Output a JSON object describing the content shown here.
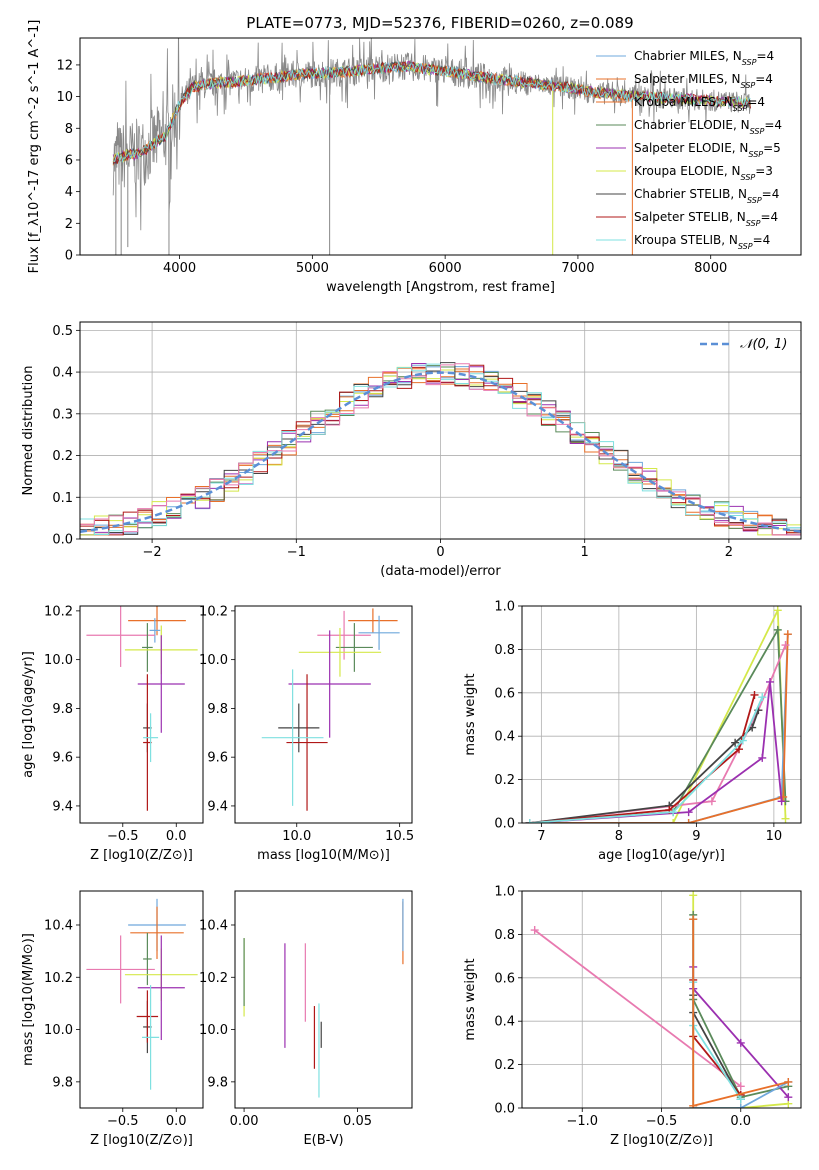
{
  "figure_title": "PLATE=0773, MJD=52376, FIBERID=0260, z=0.089",
  "colors": {
    "chabrier_miles": "#6fa8dc",
    "salpeter_miles": "#e8702a",
    "kroupa_miles": "#e8702a",
    "chabrier_elodie": "#5a8a5a",
    "salpeter_elodie": "#9b30b0",
    "kroupa_elodie": "#d4e84a",
    "chabrier_stelib": "#444444",
    "salpeter_stelib": "#b01818",
    "kroupa_stelib": "#7fe0e0",
    "extra_pink": "#e87ab0",
    "data_gray": "#888888",
    "normal_curve": "#5b8fd6",
    "grid": "#b0b0b0"
  },
  "chart_data": [
    {
      "id": "spectrum",
      "type": "line",
      "title": "PLATE=0773, MJD=52376, FIBERID=0260, z=0.089",
      "xlabel": "wavelength [Angstrom, rest frame]",
      "ylabel": "Flux [f_λ10^-17 erg cm^-2 s^-1 A^-1]",
      "xlim": [
        3250,
        8680
      ],
      "ylim": [
        0,
        13.7
      ],
      "xticks": [
        4000,
        5000,
        6000,
        7000,
        8000
      ],
      "yticks": [
        0,
        2,
        4,
        6,
        8,
        10,
        12
      ],
      "grid": false,
      "legend_position": "right",
      "series": [
        {
          "name": "Chabrier MILES, N_SSP=4",
          "color_key": "chabrier_miles"
        },
        {
          "name": "Salpeter MILES, N_SSP=4",
          "color_key": "salpeter_miles"
        },
        {
          "name": "Kroupa MILES, N_SSP=4",
          "color_key": "kroupa_miles"
        },
        {
          "name": "Chabrier ELODIE, N_SSP=4",
          "color_key": "chabrier_elodie"
        },
        {
          "name": "Salpeter ELODIE, N_SSP=5",
          "color_key": "salpeter_elodie"
        },
        {
          "name": "Kroupa ELODIE, N_SSP=3",
          "color_key": "kroupa_elodie"
        },
        {
          "name": "Chabrier STELIB, N_SSP=4",
          "color_key": "chabrier_stelib"
        },
        {
          "name": "Salpeter STELIB, N_SSP=4",
          "color_key": "salpeter_stelib"
        },
        {
          "name": "Kroupa STELIB, N_SSP=4",
          "color_key": "kroupa_stelib"
        }
      ],
      "continuum": {
        "x": [
          3500,
          3600,
          3700,
          3800,
          3900,
          4000,
          4100,
          4300,
          4500,
          4700,
          4900,
          5100,
          5300,
          5500,
          5700,
          5900,
          6100,
          6300,
          6500,
          6700,
          6900,
          7100,
          7300,
          7500,
          7700,
          7900,
          8100,
          8300
        ],
        "y": [
          6.0,
          6.3,
          6.4,
          7.0,
          7.6,
          9.6,
          10.6,
          10.9,
          11.0,
          11.2,
          11.4,
          11.5,
          11.6,
          11.8,
          11.9,
          11.7,
          11.5,
          11.2,
          11.0,
          10.8,
          10.6,
          10.3,
          10.1,
          10.0,
          9.9,
          9.8,
          9.7,
          9.6
        ]
      }
    },
    {
      "id": "residuals",
      "type": "histogram",
      "xlabel": "(data-model)/error",
      "ylabel": "Normed distribution",
      "xlim": [
        -2.5,
        2.5
      ],
      "ylim": [
        0,
        0.52
      ],
      "xticks": [
        -2,
        -1,
        0,
        1,
        2
      ],
      "yticks": [
        0.0,
        0.1,
        0.2,
        0.3,
        0.4,
        0.5
      ],
      "grid": true,
      "legend": [
        "𝒩(0, 1)"
      ],
      "legend_position": "top-right",
      "normal_mean": 0,
      "normal_sd": 1
    },
    {
      "id": "age_vs_Z",
      "type": "scatter",
      "xlabel": "Z [log10(Z/Z⊙)]",
      "ylabel": "age [log10(age/yr)]",
      "xlim": [
        -0.9,
        0.25
      ],
      "ylim": [
        9.33,
        10.22
      ],
      "xticks": [
        -0.5,
        0.0
      ],
      "yticks": [
        9.4,
        9.6,
        9.8,
        10.0,
        10.2
      ],
      "points": [
        {
          "x": -0.18,
          "xerr": 0.27,
          "y": 10.16,
          "yerr": 0.06,
          "color_key": "salpeter_miles"
        },
        {
          "x": -0.2,
          "xerr": 0.05,
          "y": 10.12,
          "yerr": 0.05,
          "color_key": "chabrier_miles"
        },
        {
          "x": -0.52,
          "xerr": 0.32,
          "y": 10.1,
          "yerr": 0.13,
          "color_key": "extra_pink"
        },
        {
          "x": -0.27,
          "xerr": 0.05,
          "y": 10.05,
          "yerr": 0.1,
          "color_key": "chabrier_elodie"
        },
        {
          "x": -0.14,
          "xerr": 0.34,
          "y": 10.04,
          "yerr": 0.1,
          "color_key": "kroupa_elodie"
        },
        {
          "x": -0.14,
          "xerr": 0.22,
          "y": 9.9,
          "yerr": 0.2,
          "color_key": "salpeter_elodie"
        },
        {
          "x": -0.27,
          "xerr": 0.04,
          "y": 9.72,
          "yerr": 0.1,
          "color_key": "chabrier_stelib"
        },
        {
          "x": -0.27,
          "xerr": 0.04,
          "y": 9.66,
          "yerr": 0.28,
          "color_key": "salpeter_stelib"
        },
        {
          "x": -0.24,
          "xerr": 0.07,
          "y": 9.68,
          "yerr": 0.1,
          "color_key": "kroupa_stelib"
        }
      ]
    },
    {
      "id": "age_vs_mass",
      "type": "scatter",
      "xlabel": "mass [log10(M/M⊙)]",
      "ylabel": "",
      "xlim": [
        9.7,
        10.56
      ],
      "ylim": [
        9.33,
        10.22
      ],
      "xticks": [
        10.0,
        10.5
      ],
      "yticks": [
        9.4,
        9.6,
        9.8,
        10.0,
        10.2
      ],
      "points": [
        {
          "x": 10.37,
          "xerr": 0.12,
          "y": 10.16,
          "yerr": 0.05,
          "color_key": "salpeter_miles"
        },
        {
          "x": 10.4,
          "xerr": 0.1,
          "y": 10.11,
          "yerr": 0.07,
          "color_key": "chabrier_miles"
        },
        {
          "x": 10.23,
          "xerr": 0.13,
          "y": 10.1,
          "yerr": 0.1,
          "color_key": "extra_pink"
        },
        {
          "x": 10.28,
          "xerr": 0.09,
          "y": 10.05,
          "yerr": 0.1,
          "color_key": "chabrier_elodie"
        },
        {
          "x": 10.21,
          "xerr": 0.2,
          "y": 10.03,
          "yerr": 0.1,
          "color_key": "kroupa_elodie"
        },
        {
          "x": 10.16,
          "xerr": 0.2,
          "y": 9.9,
          "yerr": 0.22,
          "color_key": "salpeter_elodie"
        },
        {
          "x": 10.01,
          "xerr": 0.1,
          "y": 9.72,
          "yerr": 0.1,
          "color_key": "chabrier_stelib"
        },
        {
          "x": 10.05,
          "xerr": 0.1,
          "y": 9.66,
          "yerr": 0.28,
          "color_key": "salpeter_stelib"
        },
        {
          "x": 9.98,
          "xerr": 0.15,
          "y": 9.68,
          "yerr": 0.28,
          "color_key": "kroupa_stelib"
        }
      ]
    },
    {
      "id": "weight_vs_age",
      "type": "line",
      "xlabel": "age [log10(age/yr)]",
      "ylabel": "mass weight",
      "xlim": [
        6.75,
        10.35
      ],
      "ylim": [
        0,
        1.0
      ],
      "xticks": [
        7,
        8,
        9,
        10
      ],
      "yticks": [
        0.0,
        0.2,
        0.4,
        0.6,
        0.8,
        1.0
      ],
      "grid": true,
      "series": [
        {
          "color_key": "kroupa_elodie",
          "x": [
            6.85,
            8.7,
            10.05,
            10.15
          ],
          "y": [
            0.0,
            0.0,
            0.98,
            0.02
          ]
        },
        {
          "color_key": "chabrier_elodie",
          "x": [
            6.85,
            8.7,
            10.05,
            10.15
          ],
          "y": [
            0.0,
            0.05,
            0.89,
            0.1
          ]
        },
        {
          "color_key": "chabrier_miles",
          "x": [
            6.85,
            8.9,
            10.1,
            10.18
          ],
          "y": [
            0.0,
            0.0,
            0.12,
            0.87
          ]
        },
        {
          "color_key": "salpeter_miles",
          "x": [
            6.85,
            8.9,
            10.12,
            10.18
          ],
          "y": [
            0.0,
            0.0,
            0.12,
            0.87
          ]
        },
        {
          "color_key": "extra_pink",
          "x": [
            6.85,
            9.2,
            9.8,
            10.15
          ],
          "y": [
            0.0,
            0.1,
            0.52,
            0.82
          ]
        },
        {
          "color_key": "salpeter_elodie",
          "x": [
            6.85,
            8.9,
            9.85,
            9.95,
            10.1
          ],
          "y": [
            0.0,
            0.05,
            0.3,
            0.65,
            0.1
          ]
        },
        {
          "color_key": "chabrier_stelib",
          "x": [
            6.85,
            8.65,
            9.5,
            9.72,
            9.8
          ],
          "y": [
            0.0,
            0.08,
            0.37,
            0.44,
            0.52
          ]
        },
        {
          "color_key": "salpeter_stelib",
          "x": [
            6.85,
            8.65,
            9.55,
            9.75
          ],
          "y": [
            0.0,
            0.06,
            0.34,
            0.59
          ]
        },
        {
          "color_key": "kroupa_stelib",
          "x": [
            6.85,
            8.7,
            9.6,
            9.85
          ],
          "y": [
            0.0,
            0.05,
            0.38,
            0.58
          ]
        }
      ]
    },
    {
      "id": "mass_vs_Z",
      "type": "scatter",
      "xlabel": "Z [log10(Z/Z⊙)]",
      "ylabel": "mass [log10(M/M⊙)]",
      "xlim": [
        -0.9,
        0.25
      ],
      "ylim": [
        9.7,
        10.53
      ],
      "xticks": [
        -0.5,
        0.0
      ],
      "yticks": [
        9.8,
        10.0,
        10.2,
        10.4
      ],
      "points": [
        {
          "x": -0.18,
          "xerr": 0.27,
          "y": 10.4,
          "yerr": 0.1,
          "color_key": "chabrier_miles"
        },
        {
          "x": -0.18,
          "xerr": 0.25,
          "y": 10.37,
          "yerr": 0.1,
          "color_key": "salpeter_miles"
        },
        {
          "x": -0.52,
          "xerr": 0.32,
          "y": 10.23,
          "yerr": 0.13,
          "color_key": "extra_pink"
        },
        {
          "x": -0.27,
          "xerr": 0.04,
          "y": 10.27,
          "yerr": 0.1,
          "color_key": "chabrier_elodie"
        },
        {
          "x": -0.14,
          "xerr": 0.34,
          "y": 10.21,
          "yerr": 0.1,
          "color_key": "kroupa_elodie"
        },
        {
          "x": -0.14,
          "xerr": 0.22,
          "y": 10.16,
          "yerr": 0.2,
          "color_key": "salpeter_elodie"
        },
        {
          "x": -0.27,
          "xerr": 0.04,
          "y": 10.01,
          "yerr": 0.1,
          "color_key": "chabrier_stelib"
        },
        {
          "x": -0.27,
          "xerr": 0.1,
          "y": 10.05,
          "yerr": 0.1,
          "color_key": "salpeter_stelib"
        },
        {
          "x": -0.24,
          "xerr": 0.08,
          "y": 9.97,
          "yerr": 0.2,
          "color_key": "kroupa_stelib"
        }
      ]
    },
    {
      "id": "mass_vs_EBV",
      "type": "scatter",
      "xlabel": "E(B-V)",
      "ylabel": "",
      "xlim": [
        -0.004,
        0.074
      ],
      "ylim": [
        9.7,
        10.53
      ],
      "xticks": [
        0.0,
        0.05
      ],
      "yticks": [
        9.8,
        10.0,
        10.2,
        10.4
      ],
      "points": [
        {
          "x": 0.0,
          "xerr": 0,
          "y": 10.2,
          "yerr": 0.15,
          "color_key": "kroupa_elodie"
        },
        {
          "x": 0.0,
          "xerr": 0,
          "y": 10.22,
          "yerr": 0.13,
          "color_key": "chabrier_elodie"
        },
        {
          "x": 0.018,
          "xerr": 0,
          "y": 10.13,
          "yerr": 0.2,
          "color_key": "salpeter_elodie"
        },
        {
          "x": 0.027,
          "xerr": 0,
          "y": 10.18,
          "yerr": 0.15,
          "color_key": "extra_pink"
        },
        {
          "x": 0.031,
          "xerr": 0,
          "y": 9.97,
          "yerr": 0.12,
          "color_key": "salpeter_stelib"
        },
        {
          "x": 0.034,
          "xerr": 0,
          "y": 9.98,
          "yerr": 0.05,
          "color_key": "chabrier_stelib"
        },
        {
          "x": 0.033,
          "xerr": 0,
          "y": 9.92,
          "yerr": 0.18,
          "color_key": "kroupa_stelib"
        },
        {
          "x": 0.07,
          "xerr": 0,
          "y": 10.37,
          "yerr": 0.12,
          "color_key": "salpeter_miles"
        },
        {
          "x": 0.07,
          "xerr": 0,
          "y": 10.4,
          "yerr": 0.1,
          "color_key": "chabrier_miles"
        }
      ]
    },
    {
      "id": "weight_vs_Z",
      "type": "line",
      "xlabel": "Z [log10(Z/Z⊙)]",
      "ylabel": "mass weight",
      "xlim": [
        -1.38,
        0.38
      ],
      "ylim": [
        0,
        1.0
      ],
      "xticks": [
        -1.0,
        -0.5,
        0.0
      ],
      "yticks": [
        0.0,
        0.2,
        0.4,
        0.6,
        0.8,
        1.0
      ],
      "grid": true,
      "series": [
        {
          "color_key": "extra_pink",
          "x": [
            -1.3,
            0.0
          ],
          "y": [
            0.82,
            0.1
          ]
        },
        {
          "color_key": "kroupa_elodie",
          "x": [
            -0.3,
            -0.3,
            0.0,
            0.3
          ],
          "y": [
            0.98,
            0.0,
            0.0,
            0.02
          ]
        },
        {
          "color_key": "chabrier_elodie",
          "x": [
            -0.3,
            -0.3,
            0.0,
            0.3
          ],
          "y": [
            0.89,
            0.5,
            0.05,
            0.1
          ]
        },
        {
          "color_key": "salpeter_elodie",
          "x": [
            -0.3,
            -0.3,
            0.0,
            0.3
          ],
          "y": [
            0.65,
            0.55,
            0.3,
            0.05
          ]
        },
        {
          "color_key": "salpeter_stelib",
          "x": [
            -0.3,
            -0.3,
            0.0
          ],
          "y": [
            0.59,
            0.33,
            0.06
          ]
        },
        {
          "color_key": "chabrier_stelib",
          "x": [
            -0.3,
            -0.3,
            0.0
          ],
          "y": [
            0.52,
            0.44,
            0.04
          ]
        },
        {
          "color_key": "kroupa_stelib",
          "x": [
            -0.3,
            -0.3,
            0.0
          ],
          "y": [
            0.58,
            0.38,
            0.04
          ]
        },
        {
          "color_key": "chabrier_miles",
          "x": [
            -0.3,
            -0.3,
            0.0,
            0.3
          ],
          "y": [
            0.87,
            0.0,
            0.0,
            0.12
          ]
        },
        {
          "color_key": "salpeter_miles",
          "x": [
            -0.3,
            -0.3,
            0.3
          ],
          "y": [
            0.87,
            0.01,
            0.12
          ]
        }
      ]
    }
  ]
}
